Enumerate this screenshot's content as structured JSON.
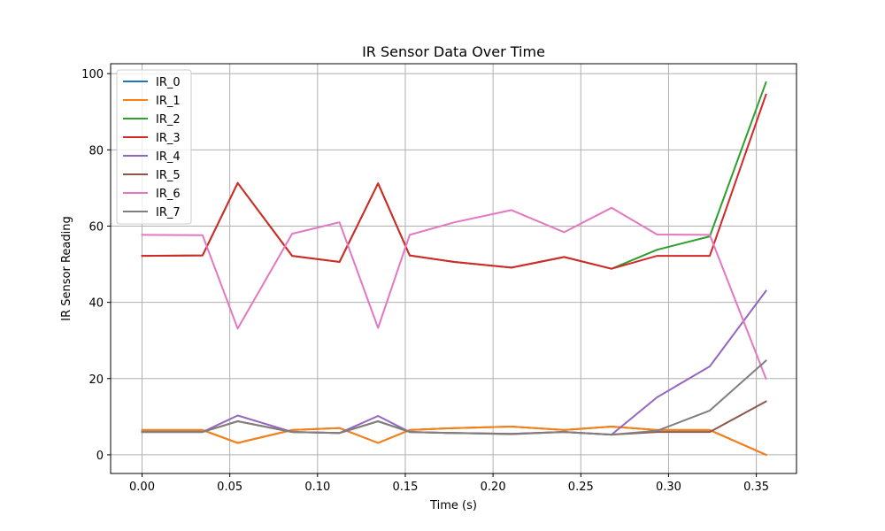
{
  "chart_data": {
    "type": "line",
    "title": "IR Sensor Data Over Time",
    "xlabel": "Time (s)",
    "ylabel": "IR Sensor Reading",
    "xlim": [
      -0.0179,
      0.3729
    ],
    "ylim": [
      -4.9,
      102.6
    ],
    "xticks": [
      0.0,
      0.05,
      0.1,
      0.15,
      0.2,
      0.25,
      0.3,
      0.35
    ],
    "xtick_labels": [
      "0.00",
      "0.05",
      "0.10",
      "0.15",
      "0.20",
      "0.25",
      "0.30",
      "0.35"
    ],
    "yticks": [
      0,
      20,
      40,
      60,
      80,
      100
    ],
    "ytick_labels": [
      "0",
      "20",
      "40",
      "60",
      "80",
      "100"
    ],
    "grid": true,
    "legend_position": "top-left",
    "x": [
      0.0,
      0.0345,
      0.0545,
      0.0855,
      0.1125,
      0.1345,
      0.1525,
      0.178,
      0.2105,
      0.2405,
      0.2675,
      0.2935,
      0.3235,
      0.3555
    ],
    "series": [
      {
        "name": "IR_0",
        "color": "#1f77b4",
        "values": [
          6.5,
          6.5,
          3.1,
          6.5,
          7.0,
          3.1,
          6.5,
          7.0,
          7.4,
          6.5,
          7.4,
          6.5,
          6.5,
          0.0
        ]
      },
      {
        "name": "IR_1",
        "color": "#ff7f0e",
        "values": [
          6.5,
          6.5,
          3.1,
          6.5,
          7.0,
          3.1,
          6.5,
          7.0,
          7.4,
          6.5,
          7.4,
          6.5,
          6.5,
          0.0
        ]
      },
      {
        "name": "IR_2",
        "color": "#2ca02c",
        "values": [
          52.2,
          52.3,
          71.3,
          52.2,
          50.6,
          71.2,
          52.3,
          50.6,
          49.1,
          51.9,
          48.8,
          53.8,
          57.3,
          97.7
        ]
      },
      {
        "name": "IR_3",
        "color": "#d62728",
        "values": [
          52.2,
          52.3,
          71.3,
          52.2,
          50.6,
          71.2,
          52.3,
          50.6,
          49.1,
          51.9,
          48.8,
          52.2,
          52.2,
          94.5
        ]
      },
      {
        "name": "IR_4",
        "color": "#9467bd",
        "values": [
          6.0,
          6.0,
          10.3,
          6.0,
          5.7,
          10.2,
          6.0,
          5.7,
          5.5,
          6.0,
          5.3,
          15.1,
          23.2,
          43.0
        ]
      },
      {
        "name": "IR_5",
        "color": "#8c564b",
        "values": [
          6.0,
          6.0,
          8.8,
          6.0,
          5.7,
          8.8,
          6.0,
          5.7,
          5.5,
          6.0,
          5.3,
          6.0,
          6.0,
          14.0
        ]
      },
      {
        "name": "IR_6",
        "color": "#e377c2",
        "values": [
          57.7,
          57.6,
          33.1,
          58.0,
          61.0,
          33.3,
          57.7,
          61.0,
          64.2,
          58.4,
          64.8,
          57.8,
          57.7,
          20.0
        ]
      },
      {
        "name": "IR_7",
        "color": "#7f7f7f",
        "values": [
          6.0,
          6.0,
          8.8,
          6.0,
          5.7,
          8.8,
          6.0,
          5.7,
          5.4,
          6.0,
          5.3,
          6.3,
          11.6,
          24.7
        ]
      }
    ]
  }
}
